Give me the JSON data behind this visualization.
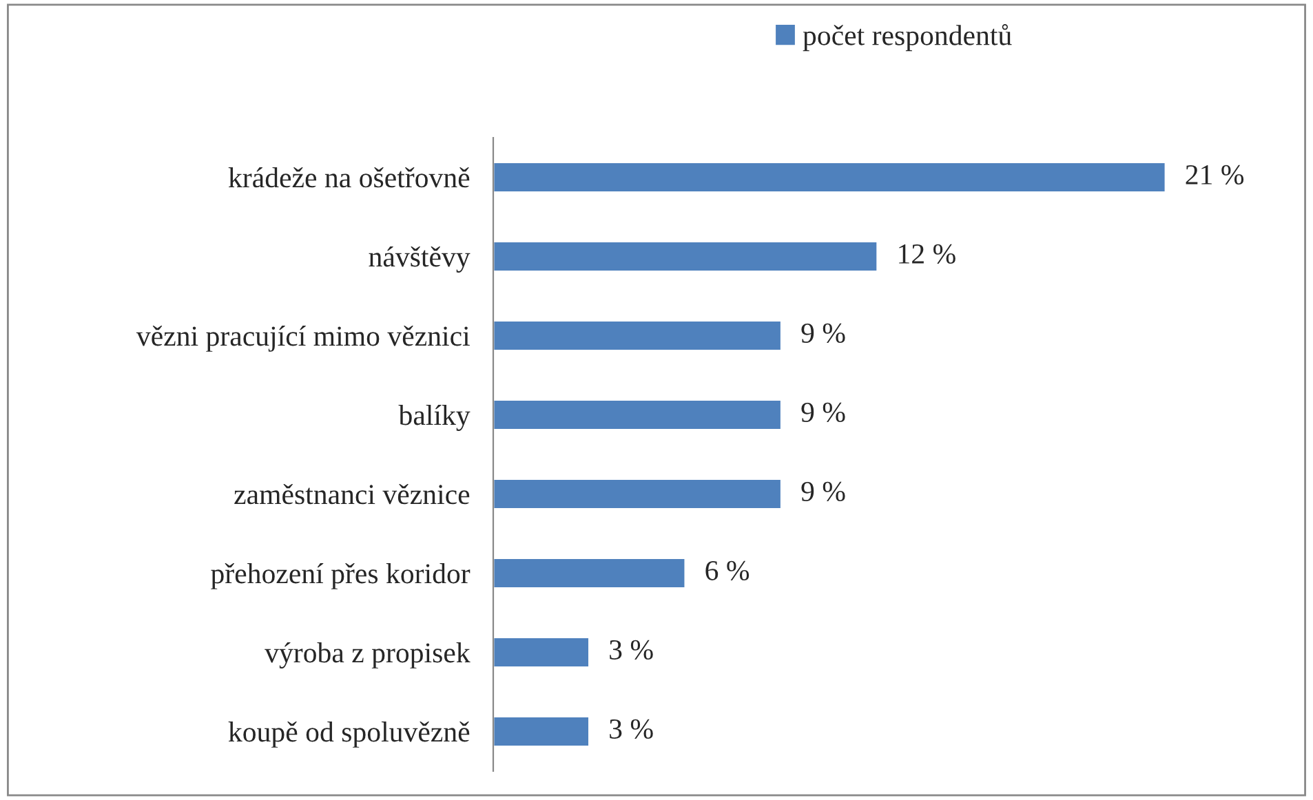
{
  "chart_data": {
    "type": "bar",
    "orientation": "horizontal",
    "categories": [
      "krádeže na ošetřovně",
      "návštěvy",
      "vězni pracující mimo věznici",
      "balíky",
      "zaměstnanci věznice",
      "přehození přes koridor",
      "výroba z propisek",
      "koupě od spoluvězně"
    ],
    "series": [
      {
        "name": "počet respondentů",
        "color": "#4f81bd",
        "values": [
          21,
          12,
          9,
          9,
          9,
          6,
          3,
          3
        ],
        "value_labels": [
          "21 %",
          "12 %",
          "9 %",
          "9 %",
          "9 %",
          "6 %",
          "3 %",
          "3 %"
        ]
      }
    ],
    "legend": "top",
    "tick_labels": "y",
    "grid": false
  }
}
